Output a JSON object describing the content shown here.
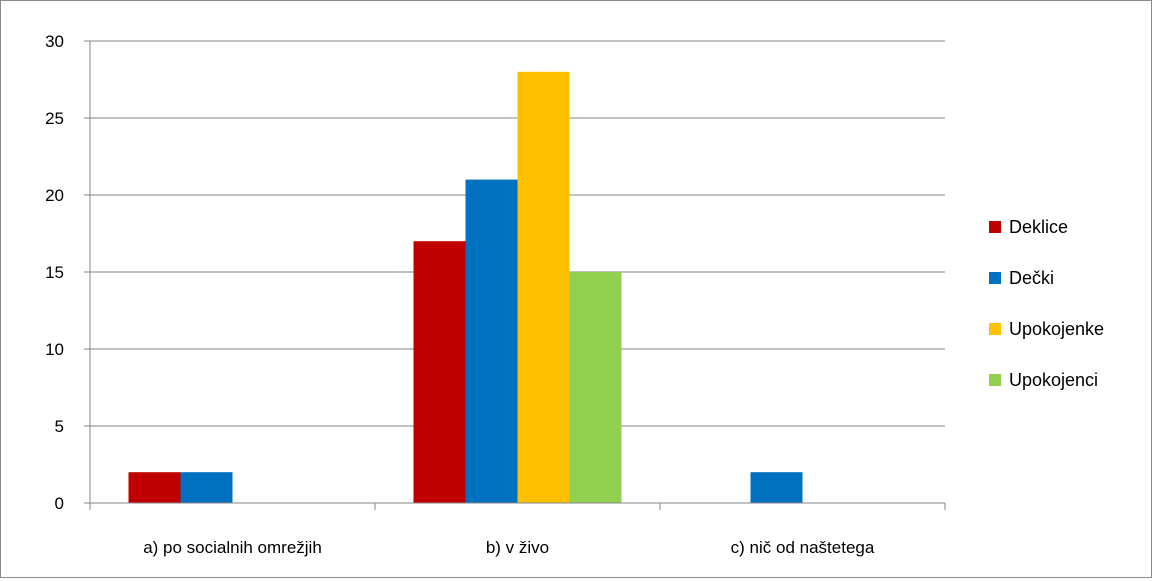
{
  "chart_data": {
    "type": "bar",
    "title": "",
    "xlabel": "",
    "ylabel": "",
    "categories": [
      "a) po socialnih omrežjih",
      "b) v živo",
      "c) nič od naštetega"
    ],
    "series": [
      {
        "name": "Deklice",
        "color": "#c00000",
        "values": [
          2,
          17,
          0
        ]
      },
      {
        "name": "Dečki",
        "color": "#0070c0",
        "values": [
          2,
          21,
          2
        ]
      },
      {
        "name": "Upokojenke",
        "color": "#ffc000",
        "values": [
          0,
          28,
          0
        ]
      },
      {
        "name": "Upokojenci",
        "color": "#92d050",
        "values": [
          0,
          15,
          0
        ]
      }
    ],
    "ylim": [
      0,
      30
    ],
    "yticks": [
      0,
      5,
      10,
      15,
      20,
      25,
      30
    ],
    "grid": true,
    "legend": "right"
  }
}
